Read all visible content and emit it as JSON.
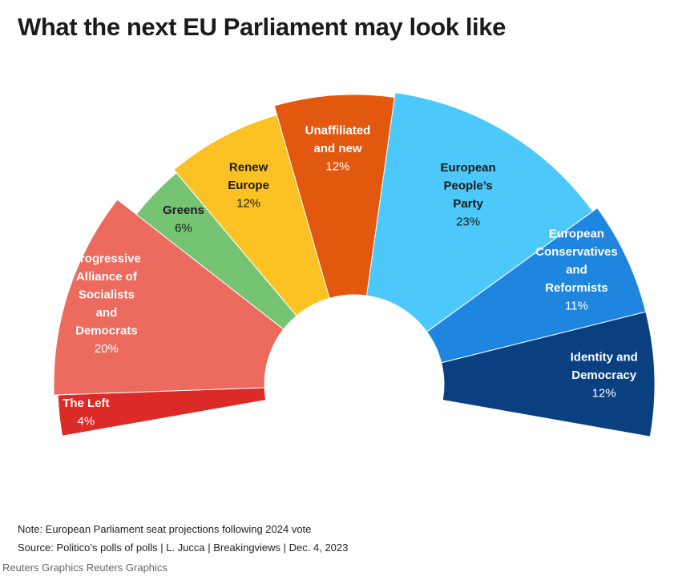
{
  "title": "What the next EU Parliament may look like",
  "note": "Note: European Parliament seat projections following 2024 vote",
  "source": "Source: Politico’s polls of polls | L. Jucca | Breakingviews | Dec. 4, 2023",
  "credit": "Reuters Graphics Reuters Graphics",
  "chart_data": {
    "type": "pie",
    "subtype": "parliament-semicircle",
    "title": "What the next EU Parliament may look like",
    "unit": "percent of seats",
    "segments": [
      {
        "key": "the-left",
        "label": "The Left",
        "name_lines": [
          "The Left"
        ],
        "value": 4,
        "value_label": "4%",
        "color": "#dc2b27",
        "text_color": "#ffffff"
      },
      {
        "key": "sd",
        "label": "Progressive Alliance of Socialists and Democrats",
        "name_lines": [
          "Progressive",
          "Alliance of",
          "Socialists",
          "and",
          "Democrats"
        ],
        "value": 20,
        "value_label": "20%",
        "color": "#ec6a5e",
        "text_color": "#ffffff"
      },
      {
        "key": "greens",
        "label": "Greens",
        "name_lines": [
          "Greens"
        ],
        "value": 6,
        "value_label": "6%",
        "color": "#75c474",
        "text_color": "#1a1a1a"
      },
      {
        "key": "renew",
        "label": "Renew Europe",
        "name_lines": [
          "Renew",
          "Europe"
        ],
        "value": 12,
        "value_label": "12%",
        "color": "#fcc223",
        "text_color": "#1a1a1a"
      },
      {
        "key": "unaffiliated",
        "label": "Unaffiliated and new",
        "name_lines": [
          "Unaffiliated",
          "and new"
        ],
        "value": 12,
        "value_label": "12%",
        "color": "#e2580f",
        "text_color": "#ffffff"
      },
      {
        "key": "epp",
        "label": "European People’s Party",
        "name_lines": [
          "European",
          "People’s",
          "Party"
        ],
        "value": 23,
        "value_label": "23%",
        "color": "#4cc9fa",
        "text_color": "#1a1a1a"
      },
      {
        "key": "ecr",
        "label": "European Conservatives and Reformists",
        "name_lines": [
          "European",
          "Conservatives",
          "and",
          "Reformists"
        ],
        "value": 11,
        "value_label": "11%",
        "color": "#1f86e0",
        "text_color": "#ffffff"
      },
      {
        "key": "id",
        "label": "Identity and Democracy",
        "name_lines": [
          "Identity and",
          "Democracy"
        ],
        "value": 12,
        "value_label": "12%",
        "color": "#0a3f80",
        "text_color": "#ffffff"
      }
    ]
  }
}
